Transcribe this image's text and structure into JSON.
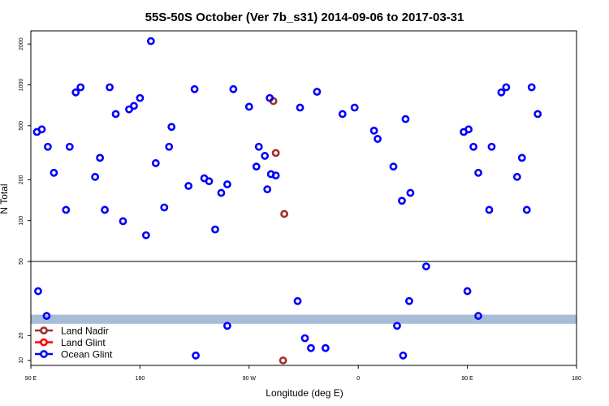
{
  "chart_data": {
    "type": "scatter",
    "title": "55S-50S October (Ver 7b_s31)   2014-09-06 to 2017-03-31",
    "xlabel": "Longitude (deg E)",
    "ylabel": "N Total",
    "x_ticks": [
      {
        "label": "90 E",
        "value": 90
      },
      {
        "label": "180",
        "value": 180
      },
      {
        "label": "90 W",
        "value": 270
      },
      {
        "label": "0",
        "value": 360
      },
      {
        "label": "90 E",
        "value": 450
      },
      {
        "label": "180",
        "value": 540
      }
    ],
    "xlim": [
      90,
      540
    ],
    "upper_panel": {
      "scale": "log",
      "ylim": [
        50,
        2500
      ],
      "ticks": [
        {
          "label": "50",
          "value": 50
        },
        {
          "label": "100",
          "value": 100
        },
        {
          "label": "200",
          "value": 200
        },
        {
          "label": "500",
          "value": 500
        },
        {
          "label": "1000",
          "value": 1000
        },
        {
          "label": "2000",
          "value": 2000
        }
      ]
    },
    "lower_panel": {
      "scale": "linear",
      "ylim": [
        8,
        50
      ],
      "ticks": [
        {
          "label": "10",
          "value": 10
        },
        {
          "label": "20",
          "value": 20
        }
      ],
      "band": {
        "y_from": 24.8,
        "y_to": 28.5,
        "color": "#a8bcd8"
      }
    },
    "legend": {
      "placement": "bottom-left",
      "entries": [
        {
          "label": "Land Nadir",
          "color": "#a03030"
        },
        {
          "label": "Land Glint",
          "color": "#ff0000"
        },
        {
          "label": "Ocean Glint",
          "color": "#0000ff"
        }
      ]
    },
    "series": [
      {
        "name": "Land Nadir",
        "color": "#a03030",
        "points": [
          [
            290,
            760
          ],
          [
            292,
            315
          ],
          [
            299,
            112
          ],
          [
            298,
            10
          ]
        ]
      },
      {
        "name": "Ocean Glint",
        "color": "#0000ff",
        "points": [
          [
            95,
            450
          ],
          [
            99,
            470
          ],
          [
            104,
            350
          ],
          [
            109,
            225
          ],
          [
            119,
            120
          ],
          [
            122,
            350
          ],
          [
            127,
            880
          ],
          [
            131,
            960
          ],
          [
            143,
            210
          ],
          [
            147,
            290
          ],
          [
            151,
            120
          ],
          [
            155,
            960
          ],
          [
            160,
            610
          ],
          [
            166,
            99
          ],
          [
            171,
            660
          ],
          [
            175,
            700
          ],
          [
            180,
            800
          ],
          [
            185,
            78
          ],
          [
            189,
            2100
          ],
          [
            193,
            265
          ],
          [
            200,
            125
          ],
          [
            204,
            350
          ],
          [
            206,
            490
          ],
          [
            220,
            180
          ],
          [
            225,
            930
          ],
          [
            233,
            205
          ],
          [
            237,
            195
          ],
          [
            242,
            86
          ],
          [
            247,
            160
          ],
          [
            252,
            185
          ],
          [
            257,
            930
          ],
          [
            270,
            690
          ],
          [
            283,
            300
          ],
          [
            287,
            800
          ],
          [
            278,
            350
          ],
          [
            276,
            250
          ],
          [
            285,
            170
          ],
          [
            288,
            220
          ],
          [
            292,
            215
          ],
          [
            312,
            680
          ],
          [
            326,
            890
          ],
          [
            347,
            610
          ],
          [
            357,
            680
          ],
          [
            373,
            460
          ],
          [
            376,
            400
          ],
          [
            389,
            250
          ],
          [
            396,
            140
          ],
          [
            399,
            560
          ],
          [
            403,
            160
          ],
          [
            447,
            450
          ],
          [
            451,
            470
          ],
          [
            455,
            350
          ],
          [
            459,
            225
          ],
          [
            468,
            120
          ],
          [
            470,
            350
          ],
          [
            478,
            880
          ],
          [
            482,
            960
          ],
          [
            491,
            210
          ],
          [
            495,
            290
          ],
          [
            499,
            120
          ],
          [
            503,
            960
          ],
          [
            508,
            610
          ],
          [
            96,
            38
          ],
          [
            103,
            28
          ],
          [
            252,
            24
          ],
          [
            226,
            12
          ],
          [
            310,
            34
          ],
          [
            321,
            15
          ],
          [
            316,
            19
          ],
          [
            333,
            15
          ],
          [
            392,
            24
          ],
          [
            397,
            12
          ],
          [
            402,
            34
          ],
          [
            416,
            48
          ],
          [
            450,
            38
          ],
          [
            459,
            28
          ]
        ]
      }
    ]
  }
}
